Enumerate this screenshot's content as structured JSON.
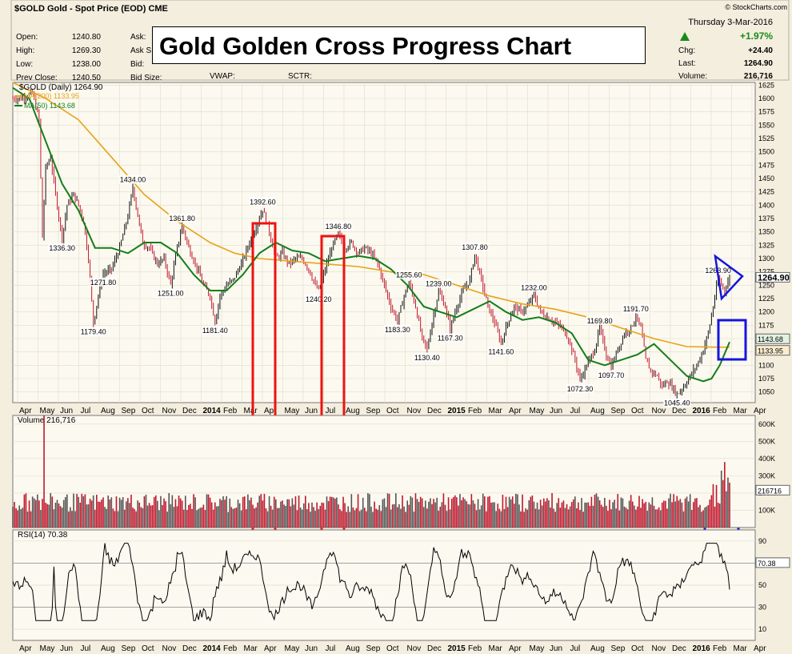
{
  "header": {
    "ticker_line": "$GOLD Gold - Spot Price (EOD) CME",
    "credit": "© StockCharts.com",
    "date": "Thursday  3-Mar-2016",
    "chg_pct": "+1.97%",
    "quote_left": [
      {
        "label": "Open:",
        "value": "1240.80"
      },
      {
        "label": "High:",
        "value": "1269.30"
      },
      {
        "label": "Low:",
        "value": "1238.00"
      },
      {
        "label": "Prev Close:",
        "value": "1240.50"
      }
    ],
    "quote_mid": [
      "Ask:",
      "Ask S",
      "Bid:",
      "Bid Size:"
    ],
    "vwap": "VWAP:",
    "sctr": "SCTR:",
    "quote_right": [
      {
        "label": "Chg:",
        "value": "+24.40"
      },
      {
        "label": "Last:",
        "value": "1264.90"
      },
      {
        "label": "Volume:",
        "value": "216,716"
      }
    ]
  },
  "title": "Gold Golden Cross Progress Chart",
  "colors": {
    "price_up": "#111111",
    "price_down": "#c0182e",
    "ma200": "#e8a317",
    "ma50": "#137e1a",
    "highlight_red": "#ee1111",
    "highlight_blue": "#1515dd",
    "bg": "#f4eedf",
    "panel": "#fbf9f0"
  },
  "chart_data": [
    {
      "type": "line",
      "panel": "price",
      "legend": [
        {
          "label": "$GOLD (Daily) 1264.90"
        },
        {
          "label": "MA(200) 1133.95",
          "color": "#e8a317"
        },
        {
          "label": "MA(50) 1143.68",
          "color": "#137e1a"
        }
      ],
      "ylim": [
        1030,
        1630
      ],
      "y_ticks": [
        1050,
        1075,
        1100,
        1125,
        1150,
        1175,
        1200,
        1225,
        1250,
        1275,
        1300,
        1325,
        1350,
        1375,
        1400,
        1425,
        1450,
        1475,
        1500,
        1525,
        1550,
        1575,
        1600,
        1625
      ],
      "x_labels": [
        "Apr",
        "May",
        "Jun",
        "Jul",
        "Aug",
        "Sep",
        "Oct",
        "Nov",
        "Dec",
        "2014",
        "Feb",
        "Mar",
        "Apr",
        "May",
        "Jun",
        "Jul",
        "Aug",
        "Sep",
        "Oct",
        "Nov",
        "Dec",
        "2015",
        "Feb",
        "Mar",
        "Apr",
        "May",
        "Jun",
        "Jul",
        "Aug",
        "Sep",
        "Oct",
        "Nov",
        "Dec",
        "2016",
        "Feb",
        "Mar",
        "Apr"
      ],
      "series": [
        {
          "name": "$GOLD",
          "points": [
            [
              0,
              1600
            ],
            [
              10,
              1600
            ],
            [
              24,
              1610
            ],
            [
              32,
              1560
            ],
            [
              36,
              1340
            ],
            [
              40,
              1470
            ],
            [
              46,
              1490
            ],
            [
              52,
              1420
            ],
            [
              60,
              1336.3
            ],
            [
              66,
              1400
            ],
            [
              74,
              1420
            ],
            [
              80,
              1400
            ],
            [
              86,
              1370
            ],
            [
              92,
              1300
            ],
            [
              98,
              1179.4
            ],
            [
              104,
              1230
            ],
            [
              110,
              1271.8
            ],
            [
              120,
              1280
            ],
            [
              130,
              1320
            ],
            [
              140,
              1380
            ],
            [
              146,
              1434
            ],
            [
              152,
              1380
            ],
            [
              158,
              1330
            ],
            [
              166,
              1320
            ],
            [
              176,
              1290
            ],
            [
              184,
              1300
            ],
            [
              192,
              1251
            ],
            [
              200,
              1320
            ],
            [
              206,
              1361.8
            ],
            [
              214,
              1320
            ],
            [
              222,
              1290
            ],
            [
              232,
              1250
            ],
            [
              240,
              1230
            ],
            [
              246,
              1181.4
            ],
            [
              252,
              1230
            ],
            [
              260,
              1250
            ],
            [
              268,
              1260
            ],
            [
              278,
              1290
            ],
            [
              288,
              1330
            ],
            [
              296,
              1360
            ],
            [
              304,
              1392.6
            ],
            [
              312,
              1350
            ],
            [
              320,
              1300
            ],
            [
              328,
              1310
            ],
            [
              336,
              1290
            ],
            [
              344,
              1300
            ],
            [
              352,
              1300
            ],
            [
              360,
              1280
            ],
            [
              368,
              1250
            ],
            [
              372,
              1240.2
            ],
            [
              380,
              1280
            ],
            [
              388,
              1320
            ],
            [
              396,
              1346.8
            ],
            [
              404,
              1320
            ],
            [
              412,
              1330
            ],
            [
              420,
              1310
            ],
            [
              428,
              1320
            ],
            [
              436,
              1310
            ],
            [
              444,
              1290
            ],
            [
              452,
              1250
            ],
            [
              460,
              1210
            ],
            [
              468,
              1183.3
            ],
            [
              476,
              1230
            ],
            [
              482,
              1255.6
            ],
            [
              490,
              1210
            ],
            [
              498,
              1150
            ],
            [
              504,
              1130.4
            ],
            [
              510,
              1180
            ],
            [
              518,
              1239
            ],
            [
              526,
              1210
            ],
            [
              532,
              1167.3
            ],
            [
              540,
              1210
            ],
            [
              548,
              1240
            ],
            [
              556,
              1260
            ],
            [
              562,
              1307.8
            ],
            [
              570,
              1260
            ],
            [
              578,
              1210
            ],
            [
              586,
              1180
            ],
            [
              594,
              1141.6
            ],
            [
              602,
              1180
            ],
            [
              610,
              1210
            ],
            [
              618,
              1200
            ],
            [
              626,
              1210
            ],
            [
              634,
              1232
            ],
            [
              642,
              1200
            ],
            [
              650,
              1190
            ],
            [
              660,
              1180
            ],
            [
              668,
              1170
            ],
            [
              676,
              1150
            ],
            [
              684,
              1110
            ],
            [
              690,
              1072.3
            ],
            [
              698,
              1100
            ],
            [
              708,
              1130
            ],
            [
              714,
              1169.8
            ],
            [
              722,
              1120
            ],
            [
              728,
              1097.7
            ],
            [
              736,
              1130
            ],
            [
              744,
              1160
            ],
            [
              752,
              1170
            ],
            [
              758,
              1191.7
            ],
            [
              764,
              1170
            ],
            [
              770,
              1110
            ],
            [
              776,
              1090
            ],
            [
              784,
              1080
            ],
            [
              790,
              1060
            ],
            [
              796,
              1070
            ],
            [
              802,
              1060
            ],
            [
              808,
              1045.4
            ],
            [
              816,
              1060
            ],
            [
              824,
              1080
            ],
            [
              832,
              1100
            ],
            [
              838,
              1120
            ],
            [
              846,
              1160
            ],
            [
              852,
              1210
            ],
            [
              858,
              1263.9
            ],
            [
              866,
              1240
            ],
            [
              872,
              1265
            ]
          ]
        },
        {
          "name": "MA(200)",
          "points": [
            [
              0,
              1630
            ],
            [
              40,
              1600
            ],
            [
              80,
              1560
            ],
            [
              120,
              1490
            ],
            [
              160,
              1420
            ],
            [
              200,
              1370
            ],
            [
              240,
              1330
            ],
            [
              270,
              1310
            ],
            [
              300,
              1300
            ],
            [
              340,
              1295
            ],
            [
              380,
              1290
            ],
            [
              420,
              1285
            ],
            [
              460,
              1275
            ],
            [
              500,
              1270
            ],
            [
              540,
              1250
            ],
            [
              580,
              1230
            ],
            [
              620,
              1215
            ],
            [
              660,
              1205
            ],
            [
              700,
              1190
            ],
            [
              740,
              1170
            ],
            [
              780,
              1150
            ],
            [
              820,
              1135
            ],
            [
              860,
              1133.95
            ],
            [
              872,
              1134
            ]
          ]
        },
        {
          "name": "MA(50)",
          "points": [
            [
              0,
              1620
            ],
            [
              20,
              1600
            ],
            [
              40,
              1520
            ],
            [
              60,
              1440
            ],
            [
              80,
              1390
            ],
            [
              100,
              1320
            ],
            [
              120,
              1320
            ],
            [
              140,
              1310
            ],
            [
              160,
              1330
            ],
            [
              180,
              1330
            ],
            [
              200,
              1310
            ],
            [
              220,
              1270
            ],
            [
              240,
              1240
            ],
            [
              260,
              1240
            ],
            [
              280,
              1270
            ],
            [
              300,
              1310
            ],
            [
              320,
              1330
            ],
            [
              340,
              1315
            ],
            [
              360,
              1310
            ],
            [
              380,
              1295
            ],
            [
              400,
              1300
            ],
            [
              420,
              1305
            ],
            [
              440,
              1300
            ],
            [
              460,
              1280
            ],
            [
              480,
              1250
            ],
            [
              500,
              1210
            ],
            [
              520,
              1200
            ],
            [
              540,
              1190
            ],
            [
              560,
              1205
            ],
            [
              580,
              1220
            ],
            [
              600,
              1200
            ],
            [
              620,
              1185
            ],
            [
              640,
              1190
            ],
            [
              660,
              1180
            ],
            [
              680,
              1160
            ],
            [
              700,
              1110
            ],
            [
              720,
              1100
            ],
            [
              740,
              1110
            ],
            [
              760,
              1120
            ],
            [
              780,
              1140
            ],
            [
              800,
              1110
            ],
            [
              820,
              1080
            ],
            [
              840,
              1070
            ],
            [
              850,
              1075
            ],
            [
              860,
              1100
            ],
            [
              872,
              1143.68
            ]
          ]
        }
      ],
      "annotations": [
        "1434.00",
        "1336.30",
        "1361.80",
        "1271.80",
        "1251.00",
        "1179.40",
        "1181.40",
        "1392.60",
        "1346.80",
        "1240.20",
        "1255.60",
        "1239.00",
        "1183.30",
        "1167.30",
        "1130.40",
        "1307.80",
        "1232.00",
        "1141.60",
        "1169.80",
        "1191.70",
        "1097.70",
        "1072.30",
        "1045.40",
        "1263.90"
      ],
      "last_value_tags": [
        "1264.90",
        "1143.68",
        "1133.95"
      ]
    },
    {
      "type": "bar",
      "panel": "volume",
      "legend": "Volume 216,716",
      "y_ticks": [
        "100K",
        "200K",
        "300K",
        "400K",
        "500K",
        "600K"
      ],
      "last_value_tag": "216716",
      "ylim": [
        0,
        650000
      ],
      "spike_values": [
        {
          "x": 38,
          "value": 650000
        },
        {
          "x": 862,
          "value": 330000
        },
        {
          "x": 866,
          "value": 380000
        },
        {
          "x": 870,
          "value": 290000
        }
      ]
    },
    {
      "type": "line",
      "panel": "rsi",
      "legend": "RSI(14) 70.38",
      "y_ticks": [
        "10",
        "30",
        "50",
        "70",
        "90"
      ],
      "ylim": [
        0,
        100
      ],
      "levels": [
        30,
        70
      ],
      "last_value_tag": "70.38"
    }
  ]
}
